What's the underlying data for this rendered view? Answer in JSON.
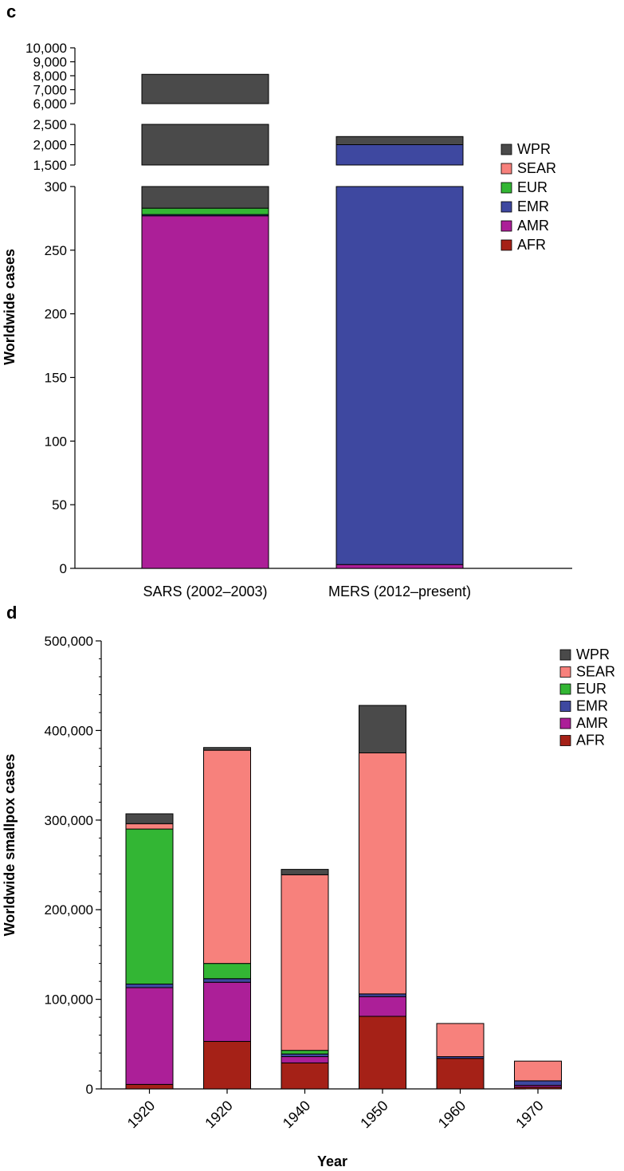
{
  "panel_c": {
    "label": "c"
  },
  "panel_d": {
    "label": "d"
  },
  "region_colors": {
    "WPR": "#4a4a4a",
    "SEAR": "#f7817c",
    "EUR": "#33b634",
    "EMR": "#3e48a0",
    "AMR": "#ac1f98",
    "AFR": "#a52117"
  },
  "chart_data": [
    {
      "type": "bar",
      "stacked": true,
      "broken_axis": true,
      "ylabel": "Worldwide cases",
      "xlabel": "",
      "categories": [
        "SARS (2002–2003)",
        "MERS (2012–present)"
      ],
      "legend": [
        "WPR",
        "SEAR",
        "EUR",
        "EMR",
        "AMR",
        "AFR"
      ],
      "legend_position": "right",
      "stack_order": [
        "AFR",
        "AMR",
        "EMR",
        "EUR",
        "SEAR",
        "WPR"
      ],
      "series": [
        {
          "name": "AFR",
          "values": [
            0,
            0
          ]
        },
        {
          "name": "AMR",
          "values": [
            277,
            3
          ]
        },
        {
          "name": "EMR",
          "values": [
            1,
            1997
          ]
        },
        {
          "name": "EUR",
          "values": [
            5,
            0
          ]
        },
        {
          "name": "SEAR",
          "values": [
            0,
            0
          ]
        },
        {
          "name": "WPR",
          "values": [
            7817,
            200
          ]
        }
      ],
      "ylim": [
        0,
        10000
      ],
      "axis_segments": [
        {
          "range": [
            0,
            300
          ],
          "ticks": [
            0,
            50,
            100,
            150,
            200,
            250,
            300
          ],
          "tick_labels": [
            "0",
            "50",
            "100",
            "150",
            "200",
            "250",
            "300"
          ]
        },
        {
          "range": [
            1500,
            2500
          ],
          "ticks": [
            1500,
            2000,
            2500
          ],
          "tick_labels": [
            "1,500",
            "2,000",
            "2,500"
          ]
        },
        {
          "range": [
            6000,
            10000
          ],
          "ticks": [
            6000,
            7000,
            8000,
            9000,
            10000
          ],
          "tick_labels": [
            "6,000",
            "7,000",
            "8,000",
            "9,000",
            "10,000"
          ]
        }
      ]
    },
    {
      "type": "bar",
      "stacked": true,
      "xlabel": "Year",
      "ylabel": "Worldwide smallpox cases",
      "categories": [
        "1920",
        "1920",
        "1940",
        "1950",
        "1960",
        "1970"
      ],
      "legend": [
        "WPR",
        "SEAR",
        "EUR",
        "EMR",
        "AMR",
        "AFR"
      ],
      "legend_position": "top-right",
      "stack_order": [
        "AFR",
        "AMR",
        "EMR",
        "EUR",
        "SEAR",
        "WPR"
      ],
      "series": [
        {
          "name": "AFR",
          "values": [
            5000,
            53000,
            29000,
            81000,
            34000,
            2000
          ]
        },
        {
          "name": "AMR",
          "values": [
            108000,
            66000,
            7000,
            22000,
            0,
            2000
          ]
        },
        {
          "name": "EMR",
          "values": [
            4000,
            4000,
            3000,
            3000,
            2000,
            5000
          ]
        },
        {
          "name": "EUR",
          "values": [
            173000,
            17000,
            4000,
            0,
            0,
            0
          ]
        },
        {
          "name": "SEAR",
          "values": [
            6000,
            238000,
            196000,
            269000,
            37000,
            22000
          ]
        },
        {
          "name": "WPR",
          "values": [
            11000,
            3000,
            6000,
            53000,
            0,
            0
          ]
        }
      ],
      "ylim": [
        0,
        500000
      ],
      "yticks": [
        0,
        100000,
        200000,
        300000,
        400000,
        500000
      ],
      "ytick_labels": [
        "0",
        "100,000",
        "200,000",
        "300,000",
        "400,000",
        "500,000"
      ],
      "minor_tick_step": 20000
    }
  ]
}
